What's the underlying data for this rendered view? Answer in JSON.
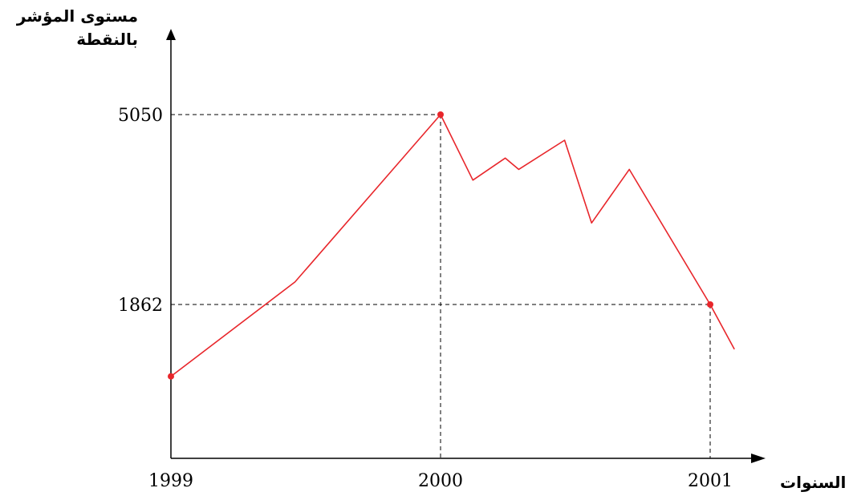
{
  "chart_data": {
    "type": "line",
    "ylabel_lines": [
      "مستوى المؤشر",
      "بالنقطة"
    ],
    "xlabel": "السنوات",
    "x_ticks": [
      {
        "label": "1999",
        "value": 1999
      },
      {
        "label": "2000",
        "value": 2000
      },
      {
        "label": "2001",
        "value": 2001
      }
    ],
    "y_ticks": [
      {
        "label": "5050",
        "value": 5050
      },
      {
        "label": "1862",
        "value": 1862
      }
    ],
    "series": [
      {
        "color": "#e8262b",
        "points": [
          {
            "x": 1999.0,
            "y": 655
          },
          {
            "x": 1999.46,
            "y": 2240
          },
          {
            "x": 2000.0,
            "y": 5050
          },
          {
            "x": 2000.12,
            "y": 3950
          },
          {
            "x": 2000.24,
            "y": 4320
          },
          {
            "x": 2000.29,
            "y": 4130
          },
          {
            "x": 2000.46,
            "y": 4620
          },
          {
            "x": 2000.56,
            "y": 3230
          },
          {
            "x": 2000.7,
            "y": 4130
          },
          {
            "x": 2001.0,
            "y": 1862
          },
          {
            "x": 2001.09,
            "y": 1110
          }
        ]
      }
    ],
    "highlighted_points": [
      {
        "x": 1999.0,
        "y": 655
      },
      {
        "x": 2000.0,
        "y": 5050
      },
      {
        "x": 2001.0,
        "y": 1862
      }
    ],
    "reference_lines": [
      {
        "x": 2000.0,
        "y": 5050
      },
      {
        "x": 2001.0,
        "y": 1862
      }
    ],
    "grid": false
  }
}
